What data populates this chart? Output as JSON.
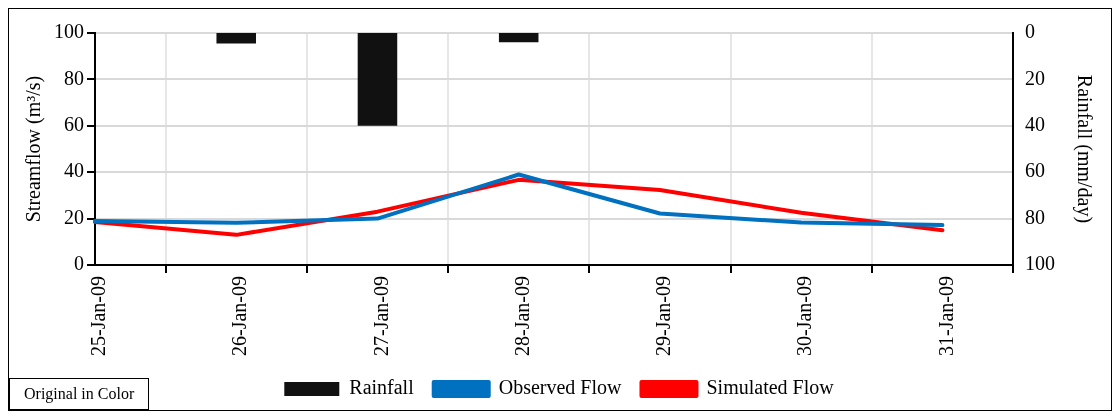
{
  "chart_data": {
    "type": "line",
    "x": [
      "--01-25",
      "--01-26",
      "--01-27",
      "--01-28",
      "--01-29",
      "--01-30",
      "--01-31"
    ],
    "xlim": [
      "--01-25",
      "--01-31T12:00"
    ],
    "xticks": [
      {
        "value": "--01-25",
        "label": "25-Jan-09"
      },
      {
        "value": "--01-26",
        "label": "26-Jan-09"
      },
      {
        "value": "--01-27",
        "label": "27-Jan-09"
      },
      {
        "value": "--01-28",
        "label": "28-Jan-09"
      },
      {
        "value": "--01-29",
        "label": "29-Jan-09"
      },
      {
        "value": "--01-30",
        "label": "30-Jan-09"
      },
      {
        "value": "--01-31",
        "label": "31-Jan-09"
      }
    ],
    "ylabel": "Streamflow (m³/s)",
    "y2label": "Rainfall (mm/day)",
    "ylim": [
      0,
      100
    ],
    "yticks": [
      0,
      20,
      40,
      60,
      80,
      100
    ],
    "y2lim": [
      100,
      0
    ],
    "y2ticks": [
      0,
      20,
      40,
      60,
      80,
      100
    ],
    "series": [
      {
        "name": "Rainfall",
        "type": "bar",
        "axis": "y2",
        "color": "#111111",
        "values": [
          0,
          4.5,
          40,
          4,
          0,
          0,
          0
        ]
      },
      {
        "name": "Observed Flow",
        "type": "line",
        "color": "#0070c0",
        "values": [
          19,
          18.2,
          20,
          39,
          22.2,
          18.3,
          17.2
        ]
      },
      {
        "name": "Simulated Flow",
        "type": "line",
        "color": "#ff0000",
        "values": [
          18.5,
          13,
          23,
          36.7,
          32.3,
          22.5,
          15
        ]
      }
    ],
    "annotations": [
      "Original in Color"
    ],
    "grid": true,
    "legend": "bottom",
    "marker": "none",
    "line_style": "solid"
  }
}
